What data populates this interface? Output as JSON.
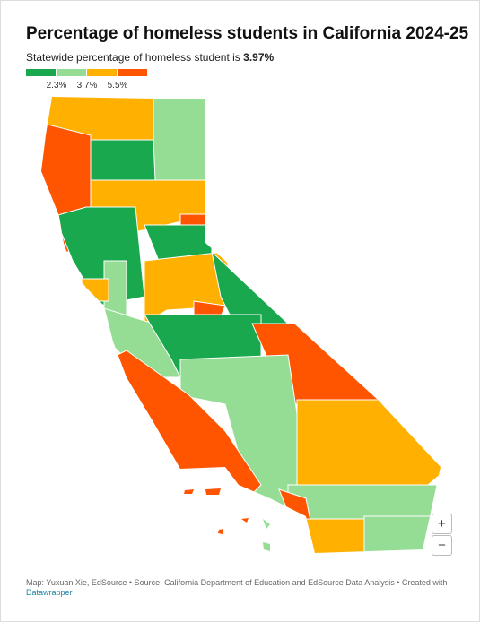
{
  "header": {
    "title": "Percentage of homeless students in California 2024-25",
    "subtitle": "Statewide percentage of homeless student is ",
    "subtitle_value": "3.97%"
  },
  "legend": {
    "colors": [
      "#1aa84f",
      "#95dd95",
      "#ffb000",
      "#ff5500"
    ],
    "labels": [
      "2.3%",
      "3.7%",
      "5.5%"
    ]
  },
  "controls": {
    "zoom_in": "+",
    "zoom_out": "−"
  },
  "footer": {
    "credit": "Map: Yuxuan Xie, EdSource • Source: California Department of Education and EdSource Data Analysis • Created with",
    "link": "Datawrapper"
  }
}
